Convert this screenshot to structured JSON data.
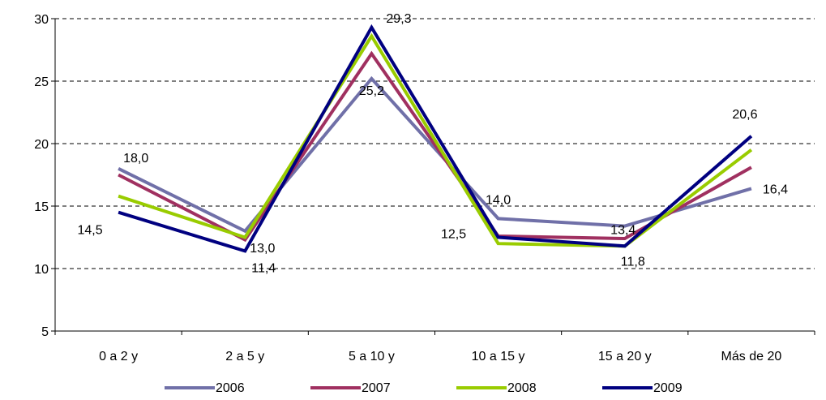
{
  "chart_data": {
    "type": "line",
    "title": "",
    "xlabel": "",
    "ylabel": "",
    "categories": [
      "0 a 2 y",
      "2 a 5 y",
      "5 a 10 y",
      "10 a 15 y",
      "15 a 20 y",
      "Más de 20"
    ],
    "ylim": [
      5,
      30
    ],
    "yticks": [
      5,
      10,
      15,
      20,
      25,
      30
    ],
    "ytick_labels": [
      "5",
      "10",
      "15",
      "20",
      "25",
      "30"
    ],
    "grid": true,
    "legend_position": "bottom",
    "series": [
      {
        "name": "2006",
        "color": "#7070a8",
        "values": [
          18.0,
          13.0,
          25.2,
          14.0,
          13.4,
          16.4
        ]
      },
      {
        "name": "2007",
        "color": "#a03060",
        "values": [
          17.5,
          12.3,
          27.2,
          12.6,
          12.4,
          18.1
        ]
      },
      {
        "name": "2008",
        "color": "#99cc00",
        "values": [
          15.8,
          12.5,
          28.6,
          12.0,
          11.8,
          19.5
        ]
      },
      {
        "name": "2009",
        "color": "#000080",
        "values": [
          14.5,
          11.4,
          29.3,
          12.5,
          11.8,
          20.6
        ]
      }
    ],
    "data_labels": [
      {
        "series": "2006",
        "category": "0 a 2 y",
        "text": "18,0"
      },
      {
        "series": "2006",
        "category": "2 a 5 y",
        "text": "13,0"
      },
      {
        "series": "2006",
        "category": "5 a 10 y",
        "text": "25,2"
      },
      {
        "series": "2006",
        "category": "10 a 15 y",
        "text": "14,0"
      },
      {
        "series": "2006",
        "category": "15 a 20 y",
        "text": "13,4"
      },
      {
        "series": "2006",
        "category": "Más de 20",
        "text": "16,4"
      },
      {
        "series": "2009",
        "category": "0 a 2 y",
        "text": "14,5"
      },
      {
        "series": "2009",
        "category": "2 a 5 y",
        "text": "11,4"
      },
      {
        "series": "2009",
        "category": "5 a 10 y",
        "text": "29,3"
      },
      {
        "series": "2009",
        "category": "10 a 15 y",
        "text": "12,5"
      },
      {
        "series": "2009",
        "category": "15 a 20 y",
        "text": "11,8"
      },
      {
        "series": "2009",
        "category": "Más de 20",
        "text": "20,6"
      }
    ]
  }
}
